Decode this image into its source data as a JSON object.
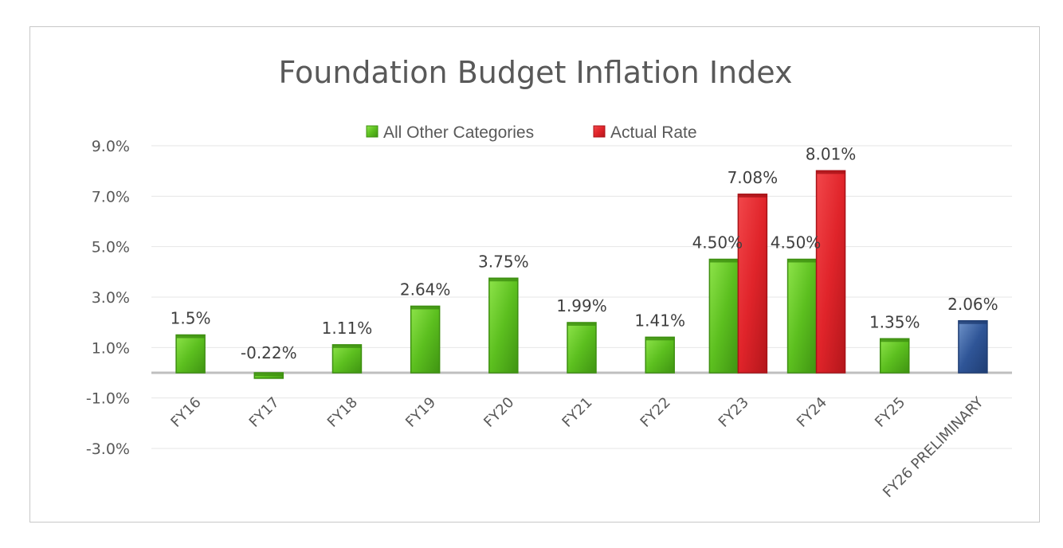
{
  "chart_data": {
    "type": "bar",
    "title": "Foundation Budget Inflation Index",
    "categories": [
      "FY16",
      "FY17",
      "FY18",
      "FY19",
      "FY20",
      "FY21",
      "FY22",
      "FY23",
      "FY24",
      "FY25",
      "FY26 PRELIMINARY"
    ],
    "series": [
      {
        "name": "All Other Categories",
        "color": "#6ecf2e",
        "values": [
          1.5,
          -0.22,
          1.11,
          2.64,
          3.75,
          1.99,
          1.41,
          4.5,
          4.5,
          1.35,
          null
        ],
        "labels": [
          "1.5%",
          "-0.22%",
          "1.11%",
          "2.64%",
          "3.75%",
          "1.99%",
          "1.41%",
          "4.50%",
          "4.50%",
          "1.35%",
          ""
        ]
      },
      {
        "name": "Actual Rate",
        "color": "#e0242a",
        "values": [
          null,
          null,
          null,
          null,
          null,
          null,
          null,
          7.08,
          8.01,
          null,
          null
        ],
        "labels": [
          "",
          "",
          "",
          "",
          "",
          "",
          "",
          "7.08%",
          "8.01%",
          "",
          ""
        ]
      },
      {
        "color": "#2f5597",
        "values": [
          null,
          null,
          null,
          null,
          null,
          null,
          null,
          null,
          null,
          null,
          2.06
        ],
        "labels": [
          "",
          "",
          "",
          "",
          "",
          "",
          "",
          "",
          "",
          "",
          "2.06%"
        ]
      }
    ],
    "ylim": [
      -3,
      9
    ],
    "yticks": [
      9,
      7,
      5,
      3,
      1,
      -1,
      -3
    ],
    "ytick_labels": [
      "9.0%",
      "7.0%",
      "5.0%",
      "3.0%",
      "1.0%",
      "-1.0%",
      "-3.0%"
    ],
    "xlabel": "",
    "ylabel": "",
    "grid": true,
    "legend_position": "top-center"
  }
}
